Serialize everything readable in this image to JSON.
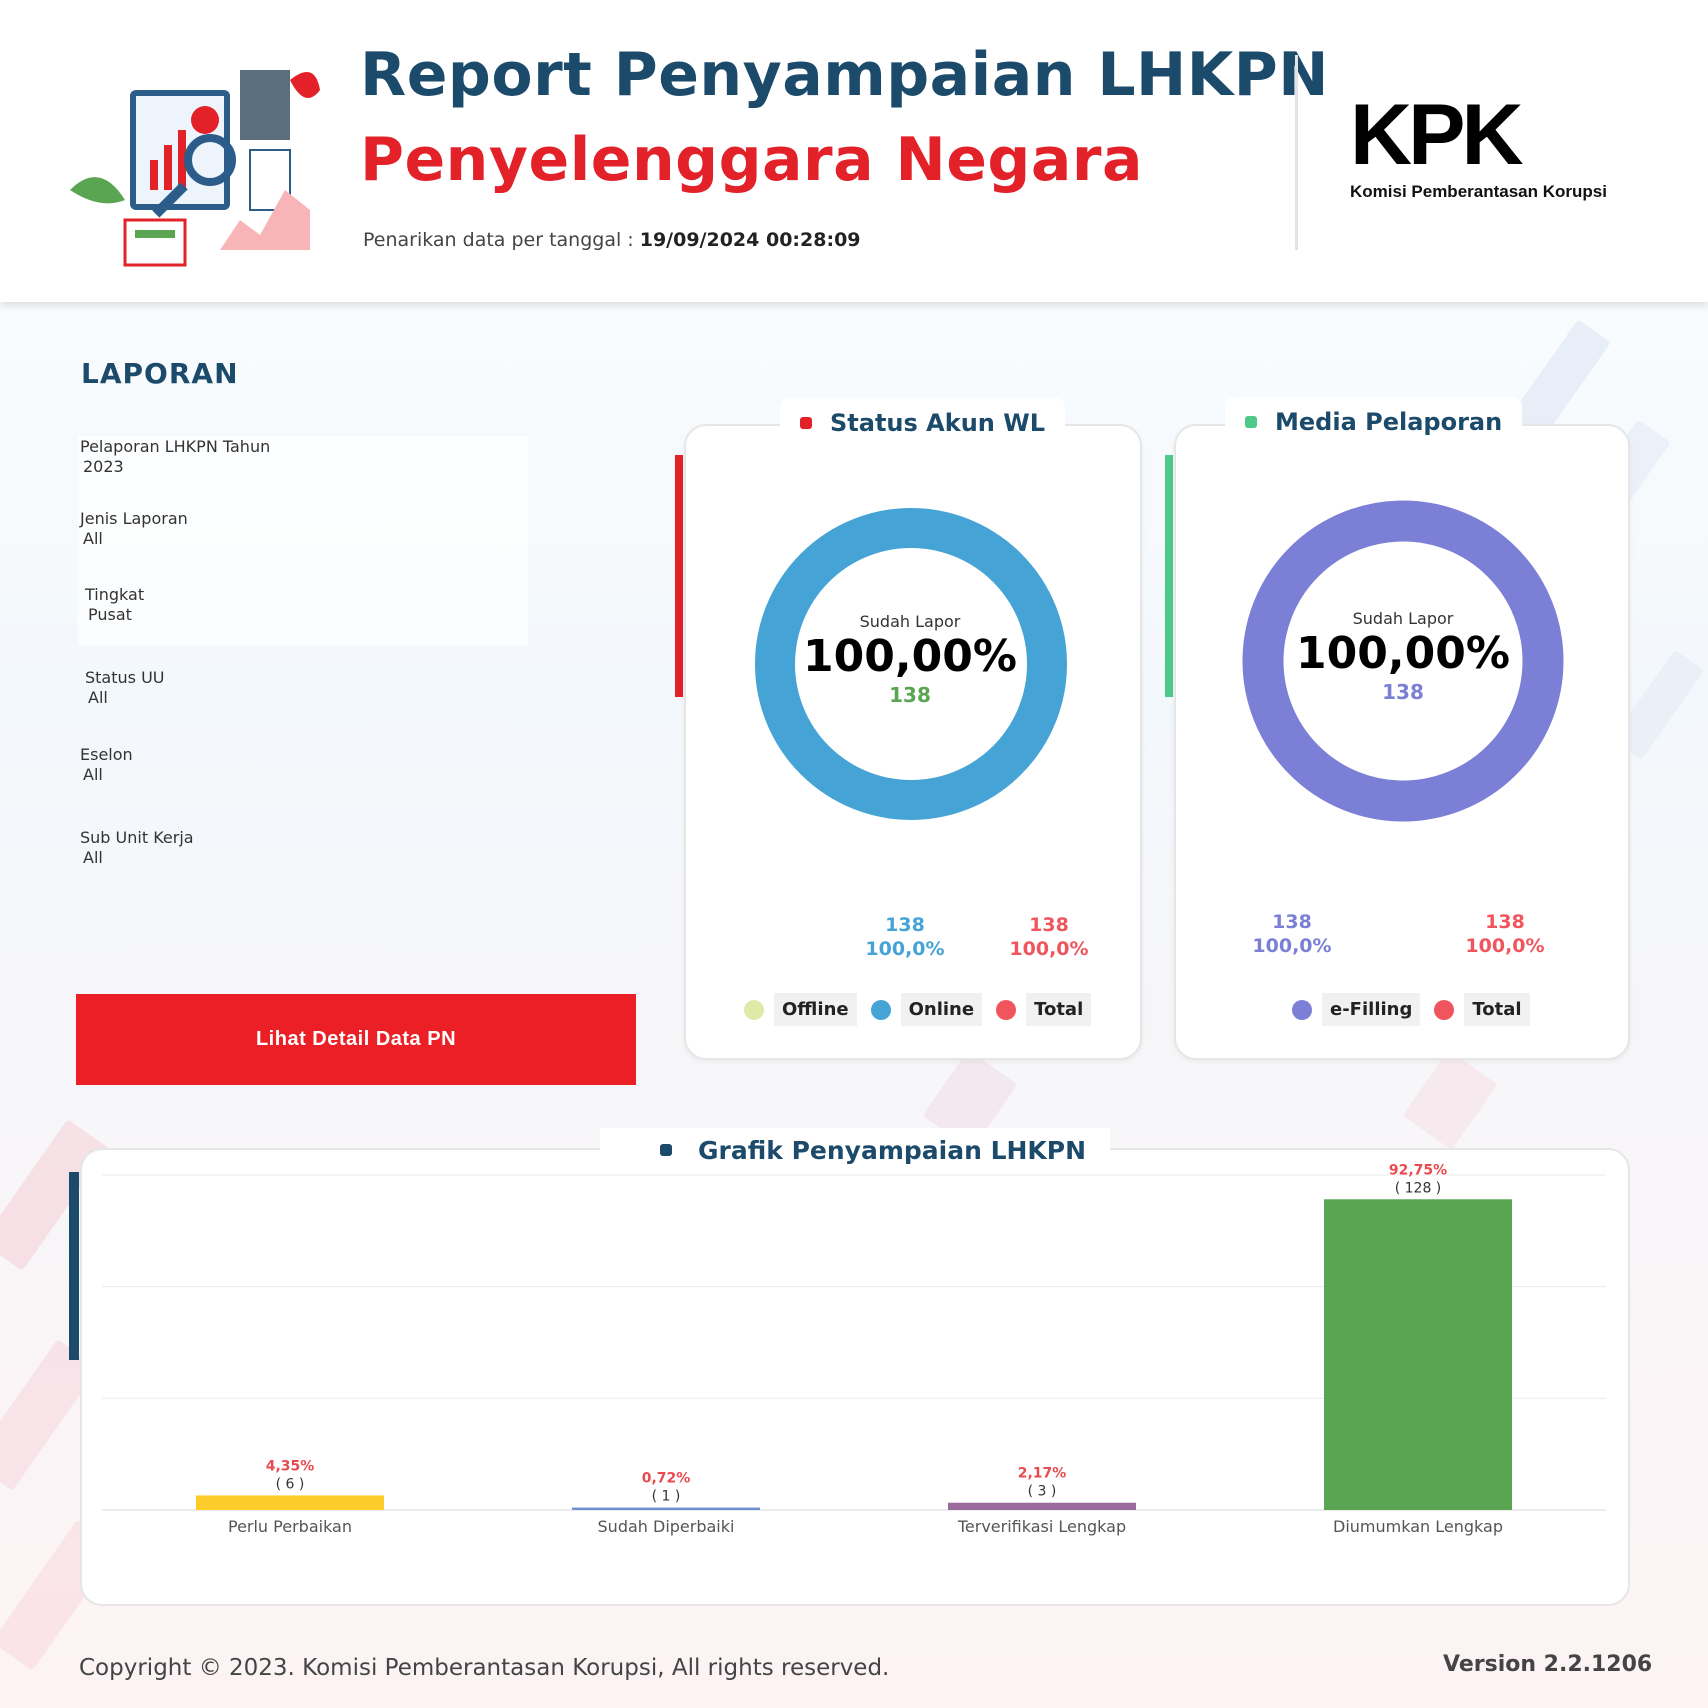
{
  "header": {
    "title_line1": "Report Penyampaian LHKPN",
    "title_line2": "Penyelenggara Negara",
    "pulled_label": "Penarikan data per tanggal : ",
    "pulled_value": "19/09/2024 00:28:09",
    "logo_text": "KPK",
    "logo_subtitle": "Komisi Pemberantasan Korupsi"
  },
  "laporan": {
    "title": "LAPORAN",
    "filters": [
      {
        "label": "Pelaporan LHKPN Tahun",
        "value": "2023"
      },
      {
        "label": "Jenis Laporan",
        "value": "All"
      },
      {
        "label": "Tingkat",
        "value": "Pusat"
      },
      {
        "label": "Status UU",
        "value": "All"
      },
      {
        "label": "Eselon",
        "value": "All"
      },
      {
        "label": "Sub Unit Kerja",
        "value": "All"
      }
    ],
    "detail_button": "Lihat Detail  Data PN"
  },
  "status_akun": {
    "title": "Status Akun WL",
    "center_label": "Sudah Lapor",
    "center_pct": "100,00%",
    "center_count": "138",
    "stats": [
      {
        "count": "138",
        "pct": "100,0%",
        "color": "#45a3d6"
      },
      {
        "count": "138",
        "pct": "100,0%",
        "color": "#f0555d"
      }
    ],
    "legend": [
      {
        "label": "Offline",
        "color": "#dfeaa8"
      },
      {
        "label": "Online",
        "color": "#45a3d6"
      },
      {
        "label": "Total",
        "color": "#f0555d"
      }
    ],
    "donut_color": "#45a3d6",
    "accent": "#e32129"
  },
  "media": {
    "title": "Media Pelaporan",
    "center_label": "Sudah Lapor",
    "center_pct": "100,00%",
    "center_count": "138",
    "stats": [
      {
        "count": "138",
        "pct": "100,0%",
        "color": "#7b7fd6"
      },
      {
        "count": "138",
        "pct": "100,0%",
        "color": "#f0555d"
      }
    ],
    "legend": [
      {
        "label": "e-Filling",
        "color": "#7b7fd6"
      },
      {
        "label": "Total",
        "color": "#f0555d"
      }
    ],
    "donut_color": "#7b7fd6",
    "accent": "#4ec98a"
  },
  "grafik": {
    "title": "Grafik Penyampaian LHKPN"
  },
  "chart_data": {
    "type": "bar",
    "title": "Grafik Penyampaian LHKPN",
    "categories": [
      "Perlu Perbaikan",
      "Sudah Diperbaiki",
      "Terverifikasi Lengkap",
      "Diumumkan Lengkap"
    ],
    "values": [
      6,
      1,
      3,
      128
    ],
    "pct_labels": [
      "4,35%",
      "0,72%",
      "2,17%",
      "92,75%"
    ],
    "count_labels": [
      "( 6 )",
      "( 1 )",
      "( 3 )",
      "( 128 )"
    ],
    "colors": [
      "#fccd2a",
      "#6b8fd0",
      "#9b6a9e",
      "#5aa552"
    ],
    "ylim": [
      0,
      138
    ],
    "grid": true
  },
  "footer": {
    "copyright": "Copyright © 2023. Komisi Pemberantasan Korupsi, All rights reserved.",
    "version": "Version  2.2.1206"
  }
}
